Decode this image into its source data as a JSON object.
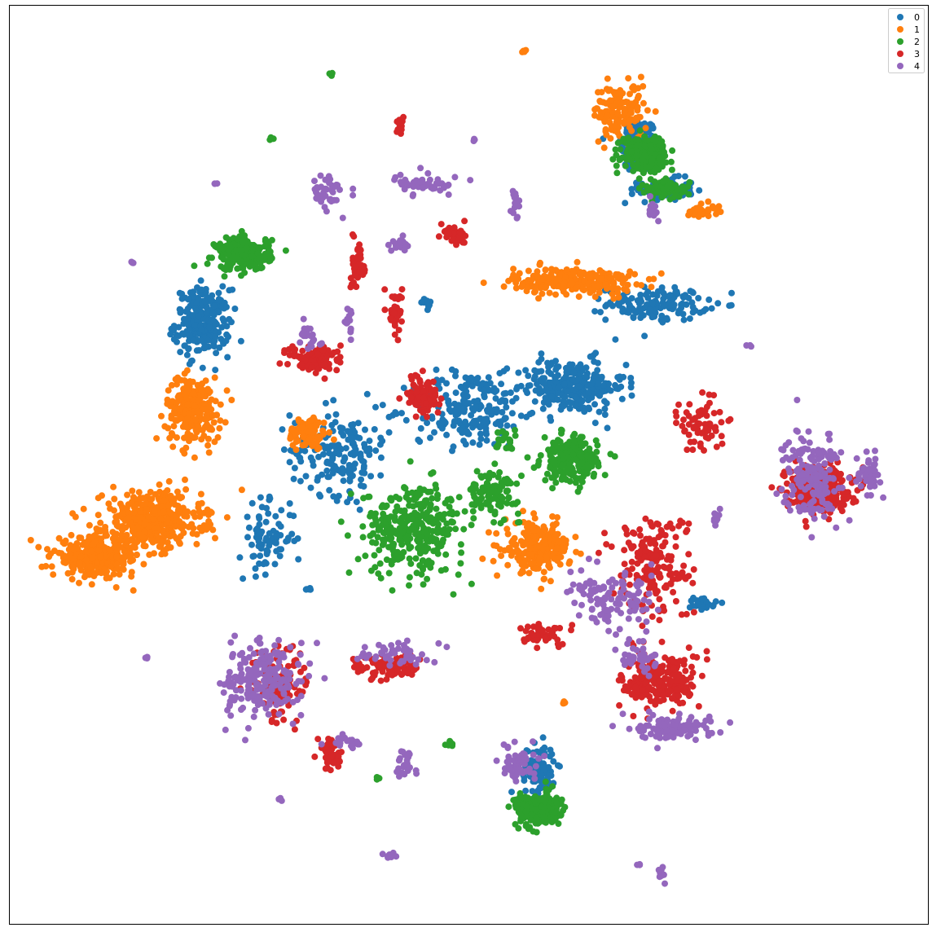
{
  "chart_data": {
    "type": "scatter",
    "title": "",
    "xlabel": "",
    "ylabel": "",
    "axis_ticks_visible": false,
    "grid": false,
    "legend_position": "top-right",
    "xlim": [
      0,
      100
    ],
    "ylim": [
      0,
      100
    ],
    "colors": {
      "0": "#1f77b4",
      "1": "#ff7f0e",
      "2": "#2ca02c",
      "3": "#d62728",
      "4": "#9467bd"
    },
    "legend": [
      "0",
      "1",
      "2",
      "3",
      "4"
    ],
    "series": [
      {
        "name": "0",
        "clusters": [
          {
            "cx": 68.5,
            "cy": 84.8,
            "sx": 1.6,
            "sy": 2.5,
            "n": 200
          },
          {
            "cx": 71.5,
            "cy": 80.0,
            "sx": 2.5,
            "sy": 1.0,
            "n": 90
          },
          {
            "cx": 21.0,
            "cy": 65.5,
            "sx": 2.5,
            "sy": 3.0,
            "n": 240
          },
          {
            "cx": 70.5,
            "cy": 67.5,
            "sx": 4.5,
            "sy": 1.5,
            "n": 140
          },
          {
            "cx": 61.0,
            "cy": 58.5,
            "sx": 5.0,
            "sy": 2.5,
            "n": 260
          },
          {
            "cx": 50.0,
            "cy": 56.0,
            "sx": 5.0,
            "sy": 3.5,
            "n": 200
          },
          {
            "cx": 36.0,
            "cy": 51.5,
            "sx": 4.5,
            "sy": 4.0,
            "n": 170
          },
          {
            "cx": 28.0,
            "cy": 42.0,
            "sx": 2.5,
            "sy": 3.0,
            "n": 80
          },
          {
            "cx": 45.5,
            "cy": 67.5,
            "sx": 0.5,
            "sy": 0.5,
            "n": 10
          },
          {
            "cx": 57.5,
            "cy": 16.8,
            "sx": 1.6,
            "sy": 2.2,
            "n": 120
          },
          {
            "cx": 75.5,
            "cy": 35.0,
            "sx": 1.2,
            "sy": 0.6,
            "n": 24
          },
          {
            "cx": 32.5,
            "cy": 36.5,
            "sx": 0.3,
            "sy": 0.3,
            "n": 5
          }
        ]
      },
      {
        "name": "1",
        "clusters": [
          {
            "cx": 56.0,
            "cy": 95.0,
            "sx": 0.2,
            "sy": 0.2,
            "n": 6
          },
          {
            "cx": 66.5,
            "cy": 88.5,
            "sx": 2.5,
            "sy": 2.5,
            "n": 130
          },
          {
            "cx": 75.5,
            "cy": 77.8,
            "sx": 1.5,
            "sy": 0.6,
            "n": 30
          },
          {
            "cx": 61.5,
            "cy": 70.0,
            "sx": 5.5,
            "sy": 1.2,
            "n": 260
          },
          {
            "cx": 20.0,
            "cy": 56.0,
            "sx": 2.5,
            "sy": 3.0,
            "n": 230
          },
          {
            "cx": 32.5,
            "cy": 53.5,
            "sx": 1.8,
            "sy": 1.5,
            "n": 90
          },
          {
            "cx": 15.5,
            "cy": 44.0,
            "sx": 4.5,
            "sy": 2.5,
            "n": 420
          },
          {
            "cx": 9.5,
            "cy": 40.0,
            "sx": 4.0,
            "sy": 1.8,
            "n": 320
          },
          {
            "cx": 57.5,
            "cy": 41.0,
            "sx": 3.0,
            "sy": 2.2,
            "n": 240
          },
          {
            "cx": 60.5,
            "cy": 24.0,
            "sx": 0.2,
            "sy": 0.2,
            "n": 5
          }
        ]
      },
      {
        "name": "2",
        "clusters": [
          {
            "cx": 35.0,
            "cy": 92.5,
            "sx": 0.2,
            "sy": 0.2,
            "n": 4
          },
          {
            "cx": 28.5,
            "cy": 85.5,
            "sx": 0.2,
            "sy": 0.2,
            "n": 4
          },
          {
            "cx": 69.0,
            "cy": 84.0,
            "sx": 2.0,
            "sy": 1.5,
            "n": 240
          },
          {
            "cx": 71.5,
            "cy": 80.0,
            "sx": 2.0,
            "sy": 0.8,
            "n": 80
          },
          {
            "cx": 25.5,
            "cy": 73.0,
            "sx": 2.5,
            "sy": 1.5,
            "n": 220
          },
          {
            "cx": 61.0,
            "cy": 50.5,
            "sx": 2.5,
            "sy": 2.0,
            "n": 230
          },
          {
            "cx": 44.0,
            "cy": 43.0,
            "sx": 4.5,
            "sy": 4.0,
            "n": 330
          },
          {
            "cx": 52.5,
            "cy": 47.0,
            "sx": 2.5,
            "sy": 2.0,
            "n": 100
          },
          {
            "cx": 54.0,
            "cy": 52.5,
            "sx": 1.5,
            "sy": 1.0,
            "n": 20
          },
          {
            "cx": 57.5,
            "cy": 12.5,
            "sx": 2.0,
            "sy": 1.5,
            "n": 230
          },
          {
            "cx": 48.0,
            "cy": 19.5,
            "sx": 0.3,
            "sy": 0.3,
            "n": 6
          },
          {
            "cx": 40.0,
            "cy": 15.8,
            "sx": 0.2,
            "sy": 0.2,
            "n": 4
          }
        ]
      },
      {
        "name": "3",
        "clusters": [
          {
            "cx": 42.5,
            "cy": 87.0,
            "sx": 0.3,
            "sy": 1.0,
            "n": 20
          },
          {
            "cx": 48.5,
            "cy": 75.0,
            "sx": 1.0,
            "sy": 1.0,
            "n": 40
          },
          {
            "cx": 38.0,
            "cy": 72.0,
            "sx": 0.6,
            "sy": 2.2,
            "n": 50
          },
          {
            "cx": 42.0,
            "cy": 66.5,
            "sx": 0.6,
            "sy": 2.0,
            "n": 40
          },
          {
            "cx": 33.5,
            "cy": 61.5,
            "sx": 2.5,
            "sy": 1.5,
            "n": 90
          },
          {
            "cx": 45.0,
            "cy": 57.5,
            "sx": 1.5,
            "sy": 2.0,
            "n": 80
          },
          {
            "cx": 75.5,
            "cy": 54.5,
            "sx": 2.0,
            "sy": 2.5,
            "n": 70
          },
          {
            "cx": 88.0,
            "cy": 47.5,
            "sx": 3.0,
            "sy": 2.0,
            "n": 290
          },
          {
            "cx": 70.0,
            "cy": 39.0,
            "sx": 3.5,
            "sy": 5.0,
            "n": 180
          },
          {
            "cx": 58.0,
            "cy": 31.5,
            "sx": 2.5,
            "sy": 1.0,
            "n": 50
          },
          {
            "cx": 29.5,
            "cy": 26.0,
            "sx": 2.5,
            "sy": 3.5,
            "n": 110
          },
          {
            "cx": 41.0,
            "cy": 28.0,
            "sx": 3.0,
            "sy": 1.2,
            "n": 90
          },
          {
            "cx": 71.0,
            "cy": 26.5,
            "sx": 3.5,
            "sy": 2.5,
            "n": 230
          },
          {
            "cx": 35.0,
            "cy": 18.5,
            "sx": 1.0,
            "sy": 1.5,
            "n": 50
          }
        ]
      },
      {
        "name": "4",
        "clusters": [
          {
            "cx": 45.5,
            "cy": 80.5,
            "sx": 3.0,
            "sy": 0.8,
            "n": 50
          },
          {
            "cx": 34.5,
            "cy": 79.5,
            "sx": 1.5,
            "sy": 1.8,
            "n": 40
          },
          {
            "cx": 42.5,
            "cy": 74.0,
            "sx": 0.8,
            "sy": 0.6,
            "n": 20
          },
          {
            "cx": 32.5,
            "cy": 64.0,
            "sx": 1.0,
            "sy": 1.5,
            "n": 20
          },
          {
            "cx": 37.0,
            "cy": 65.5,
            "sx": 0.5,
            "sy": 1.5,
            "n": 15
          },
          {
            "cx": 55.0,
            "cy": 78.5,
            "sx": 0.5,
            "sy": 1.5,
            "n": 15
          },
          {
            "cx": 70.0,
            "cy": 77.5,
            "sx": 0.5,
            "sy": 1.0,
            "n": 15
          },
          {
            "cx": 87.5,
            "cy": 49.0,
            "sx": 2.5,
            "sy": 4.0,
            "n": 180
          },
          {
            "cx": 93.5,
            "cy": 49.0,
            "sx": 1.0,
            "sy": 1.5,
            "n": 50
          },
          {
            "cx": 66.0,
            "cy": 35.0,
            "sx": 4.0,
            "sy": 2.5,
            "n": 110
          },
          {
            "cx": 27.5,
            "cy": 26.5,
            "sx": 3.5,
            "sy": 3.5,
            "n": 220
          },
          {
            "cx": 42.0,
            "cy": 29.5,
            "sx": 3.0,
            "sy": 1.0,
            "n": 50
          },
          {
            "cx": 72.5,
            "cy": 21.5,
            "sx": 3.5,
            "sy": 1.2,
            "n": 110
          },
          {
            "cx": 68.5,
            "cy": 29.0,
            "sx": 1.5,
            "sy": 1.5,
            "n": 40
          },
          {
            "cx": 55.5,
            "cy": 17.5,
            "sx": 1.8,
            "sy": 1.5,
            "n": 60
          },
          {
            "cx": 43.0,
            "cy": 17.5,
            "sx": 1.0,
            "sy": 1.5,
            "n": 25
          },
          {
            "cx": 36.5,
            "cy": 19.8,
            "sx": 1.5,
            "sy": 0.8,
            "n": 20
          },
          {
            "cx": 41.5,
            "cy": 7.5,
            "sx": 0.6,
            "sy": 0.3,
            "n": 8
          },
          {
            "cx": 71.0,
            "cy": 5.5,
            "sx": 0.3,
            "sy": 0.6,
            "n": 10
          },
          {
            "cx": 68.5,
            "cy": 6.5,
            "sx": 0.2,
            "sy": 0.2,
            "n": 3
          },
          {
            "cx": 13.5,
            "cy": 72.0,
            "sx": 0.2,
            "sy": 0.2,
            "n": 3
          },
          {
            "cx": 22.5,
            "cy": 80.5,
            "sx": 0.2,
            "sy": 0.2,
            "n": 3
          },
          {
            "cx": 50.5,
            "cy": 85.5,
            "sx": 0.2,
            "sy": 0.2,
            "n": 3
          },
          {
            "cx": 29.5,
            "cy": 13.5,
            "sx": 0.2,
            "sy": 0.2,
            "n": 3
          },
          {
            "cx": 15.0,
            "cy": 29.0,
            "sx": 0.2,
            "sy": 0.2,
            "n": 3
          },
          {
            "cx": 80.5,
            "cy": 63.0,
            "sx": 0.2,
            "sy": 0.2,
            "n": 3
          },
          {
            "cx": 77.0,
            "cy": 44.0,
            "sx": 0.5,
            "sy": 0.8,
            "n": 10
          }
        ]
      }
    ]
  }
}
